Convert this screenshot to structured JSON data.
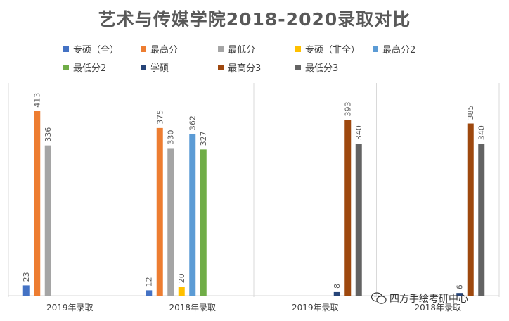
{
  "chart_data": {
    "type": "bar",
    "title": "艺术与传媒学院2018-2020录取对比",
    "categories": [
      "2019年录取",
      "2018年录取",
      "2019年录取",
      "2018年录取"
    ],
    "ylim": [
      0,
      450
    ],
    "grid": false,
    "legend_position": "top",
    "series": [
      {
        "name": "专硕（全）",
        "color": "#4472C4",
        "values": [
          23,
          12,
          null,
          null
        ]
      },
      {
        "name": "最高分",
        "color": "#ED7D31",
        "values": [
          413,
          375,
          null,
          null
        ]
      },
      {
        "name": "最低分",
        "color": "#A5A5A5",
        "values": [
          336,
          330,
          null,
          null
        ]
      },
      {
        "name": "专硕（非全）",
        "color": "#FFC000",
        "values": [
          null,
          20,
          null,
          null
        ]
      },
      {
        "name": "最高分2",
        "color": "#5B9BD5",
        "values": [
          null,
          362,
          null,
          null
        ]
      },
      {
        "name": "最低分2",
        "color": "#70AD47",
        "values": [
          null,
          327,
          null,
          null
        ]
      },
      {
        "name": "学硕",
        "color": "#264478",
        "values": [
          null,
          null,
          8,
          6
        ]
      },
      {
        "name": "最高分3",
        "color": "#9E480E",
        "values": [
          null,
          null,
          393,
          385
        ]
      },
      {
        "name": "最低分3",
        "color": "#636363",
        "values": [
          null,
          null,
          340,
          340
        ]
      }
    ]
  },
  "watermark": {
    "text": "四方手绘考研中心",
    "icon": "wechat-icon"
  }
}
